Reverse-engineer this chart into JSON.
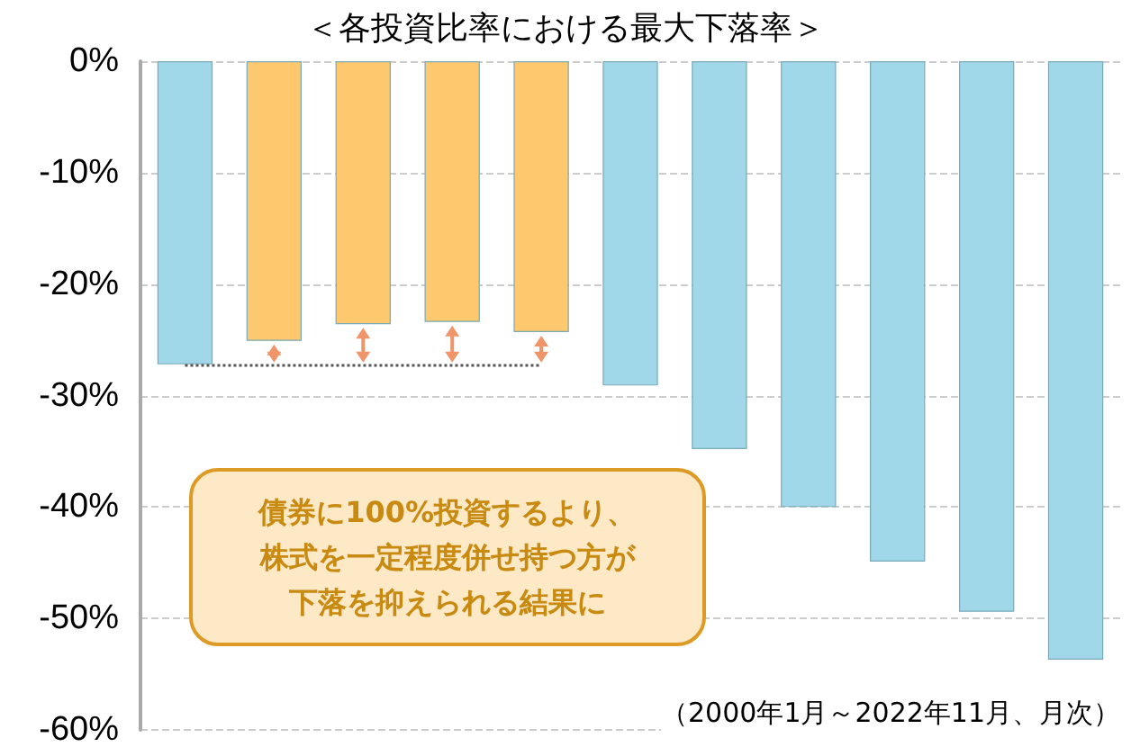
{
  "chart_data": {
    "type": "bar",
    "title": "＜各投資比率における最大下落率＞",
    "categories": [
      null,
      null,
      null,
      null,
      null,
      null,
      null,
      null,
      null,
      null,
      null
    ],
    "values": [
      -27.2,
      -25.1,
      -23.6,
      -23.4,
      -24.3,
      -29.1,
      -34.8,
      -40,
      -44.9,
      -49.4,
      -53.7
    ],
    "colors": [
      "#a0d8ea",
      "#fdc86e",
      "#fdc86e",
      "#fdc86e",
      "#fdc86e",
      "#a0d8ea",
      "#a0d8ea",
      "#a0d8ea",
      "#a0d8ea",
      "#a0d8ea",
      "#a0d8ea"
    ],
    "ylim": [
      -60,
      0
    ],
    "yticks": [
      {
        "value": 0,
        "label": "0%"
      },
      {
        "value": -10,
        "label": "-10%"
      },
      {
        "value": -20,
        "label": "-20%"
      },
      {
        "value": -30,
        "label": "-30%"
      },
      {
        "value": -40,
        "label": "-40%"
      },
      {
        "value": -50,
        "label": "-50%"
      },
      {
        "value": -60,
        "label": "-60%"
      }
    ],
    "ref_lines": [
      {
        "axis": "y",
        "value": -27.2,
        "color": "#555555",
        "line_style": "dotted"
      }
    ],
    "annotations": [
      "債券に100%投資するより、",
      "株式を一定程度併せ持つ方が",
      "下落を抑えられる結果に",
      "（2000年1月～2022年11月、月次）"
    ],
    "grid": "y",
    "tick_labels": "y"
  }
}
